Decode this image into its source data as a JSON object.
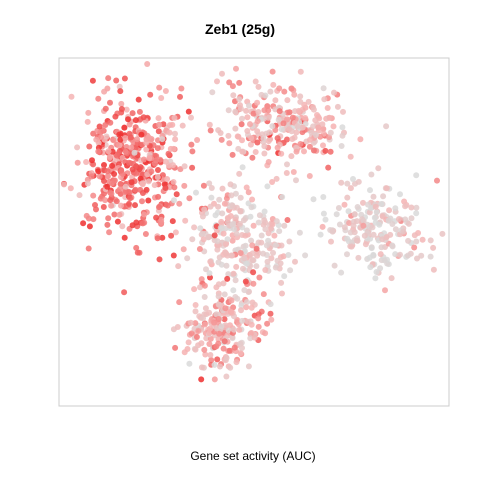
{
  "chart_data": {
    "type": "scatter",
    "title": "Zeb1 (25g)",
    "xlabel": "Gene set activity (AUC)",
    "ylabel": "",
    "axes_visible": false,
    "grid": false,
    "legend": "none",
    "color_scale": {
      "low": "#d9d9d9",
      "mid": "#f6b2b2",
      "high": "#ee2f2f"
    },
    "clusters": [
      {
        "id": "upper-left",
        "points": 460,
        "center": [
          -0.62,
          0.38
        ],
        "spread": [
          0.24,
          0.32
        ],
        "activity_mean": 0.72
      },
      {
        "id": "upper-middle",
        "points": 260,
        "center": [
          0.18,
          0.62
        ],
        "spread": [
          0.32,
          0.18
        ],
        "activity_mean": 0.45
      },
      {
        "id": "center",
        "points": 260,
        "center": [
          -0.05,
          -0.05
        ],
        "spread": [
          0.22,
          0.26
        ],
        "activity_mean": 0.28
      },
      {
        "id": "right",
        "points": 200,
        "center": [
          0.68,
          0.02
        ],
        "spread": [
          0.24,
          0.22
        ],
        "activity_mean": 0.18
      },
      {
        "id": "lower",
        "points": 220,
        "center": [
          -0.15,
          -0.55
        ],
        "spread": [
          0.18,
          0.2
        ],
        "activity_mean": 0.45
      }
    ]
  }
}
